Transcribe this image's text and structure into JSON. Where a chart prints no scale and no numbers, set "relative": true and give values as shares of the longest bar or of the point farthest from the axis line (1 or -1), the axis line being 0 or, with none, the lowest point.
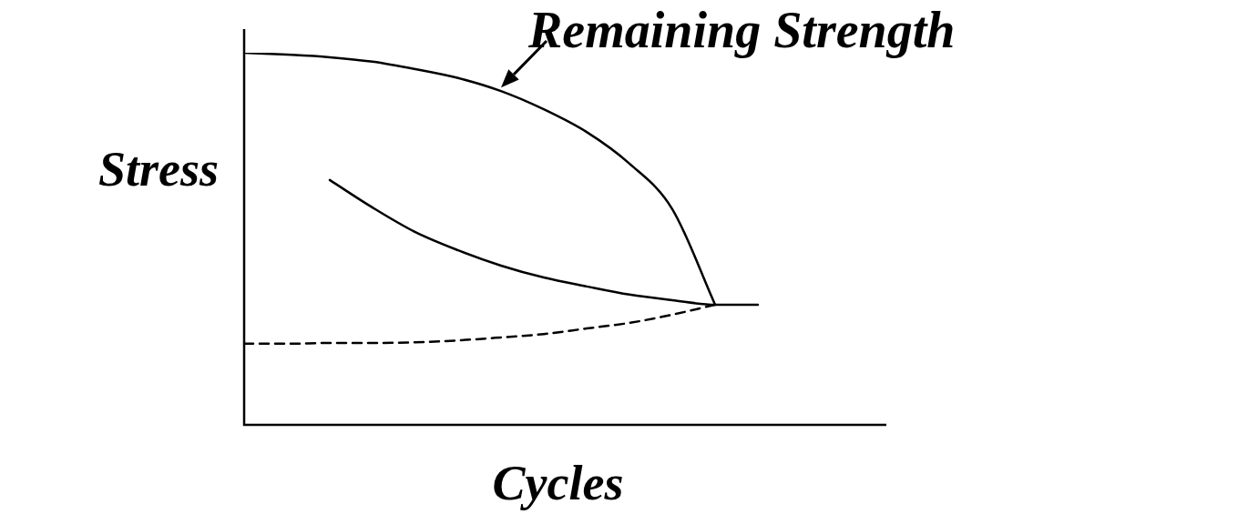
{
  "chart_data": {
    "type": "line",
    "relative": true,
    "xlabel": "Cycles",
    "ylabel": "Stress",
    "marker": "none",
    "categories": [
      null,
      null,
      null,
      null,
      null,
      null,
      null,
      null,
      null,
      null,
      null,
      null,
      null,
      null,
      null,
      null
    ],
    "series": [
      {
        "name": "Remaining Strength",
        "color": "#000000",
        "line_style": "solid",
        "values": [
          1,
          0.995,
          0.988,
          0.976,
          0.956,
          0.932,
          0.897,
          0.848,
          0.787,
          0.702,
          0.58,
          0.323,
          null,
          null,
          null,
          null
        ]
      },
      {
        "color": "#000000",
        "line_style": "solid",
        "values": [
          null,
          null,
          0.658,
          0.584,
          0.518,
          0.469,
          0.428,
          0.396,
          0.372,
          0.35,
          0.335,
          0.323,
          0.323,
          null,
          null,
          null
        ]
      },
      {
        "color": "#000000",
        "line_style": "dashed",
        "values": [
          0.218,
          0.218,
          0.22,
          0.22,
          0.222,
          0.227,
          0.235,
          0.244,
          0.259,
          0.274,
          0.296,
          0.323,
          null,
          null,
          null,
          null
        ]
      }
    ]
  }
}
